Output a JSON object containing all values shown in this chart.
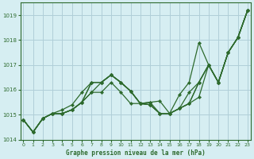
{
  "title": "Graphe pression niveau de la mer (hPa)",
  "bg_color": "#d6eef2",
  "grid_color": "#b0cfd8",
  "line_color": "#2d6a2d",
  "ylim": [
    1014.0,
    1019.5
  ],
  "xlim": [
    -0.3,
    23.3
  ],
  "yticks": [
    1014,
    1015,
    1016,
    1017,
    1018,
    1019
  ],
  "xticks": [
    0,
    1,
    2,
    3,
    4,
    5,
    6,
    7,
    8,
    9,
    10,
    11,
    12,
    13,
    14,
    15,
    16,
    17,
    18,
    19,
    20,
    21,
    22,
    23
  ],
  "lines": [
    [
      1014.8,
      1014.3,
      1014.85,
      1015.05,
      1015.05,
      1015.2,
      1015.5,
      1016.3,
      1016.3,
      1016.6,
      1016.3,
      1015.95,
      1015.45,
      1015.5,
      1015.55,
      1015.05,
      1015.25,
      1015.45,
      1016.3,
      1017.0,
      1016.3,
      1017.5,
      1018.1,
      1019.2
    ],
    [
      1014.8,
      1014.3,
      1014.85,
      1015.05,
      1015.05,
      1015.2,
      1015.5,
      1016.3,
      1016.3,
      1016.6,
      1016.3,
      1015.95,
      1015.45,
      1015.5,
      1015.05,
      1015.05,
      1015.25,
      1015.45,
      1015.7,
      1017.0,
      1016.3,
      1017.5,
      1018.1,
      1019.2
    ],
    [
      1014.8,
      1014.3,
      1014.85,
      1015.05,
      1015.05,
      1015.2,
      1015.5,
      1015.9,
      1016.3,
      1016.6,
      1016.3,
      1015.95,
      1015.45,
      1015.4,
      1015.05,
      1015.05,
      1015.25,
      1015.9,
      1016.3,
      1017.0,
      1016.3,
      1017.5,
      1018.1,
      1019.2
    ],
    [
      1014.8,
      1014.3,
      1014.85,
      1015.05,
      1015.05,
      1015.2,
      1015.5,
      1015.9,
      1015.9,
      1016.3,
      1015.9,
      1015.45,
      1015.45,
      1015.4,
      1015.05,
      1015.05,
      1015.25,
      1015.45,
      1016.3,
      1017.0,
      1016.3,
      1017.5,
      1018.1,
      1019.2
    ],
    [
      1014.8,
      1014.3,
      1014.85,
      1015.05,
      1015.2,
      1015.4,
      1015.9,
      1016.3,
      1016.3,
      1016.6,
      1016.3,
      1015.95,
      1015.45,
      1015.4,
      1015.05,
      1015.05,
      1015.8,
      1016.3,
      1017.9,
      1017.0,
      1016.3,
      1017.5,
      1018.1,
      1019.2
    ]
  ]
}
